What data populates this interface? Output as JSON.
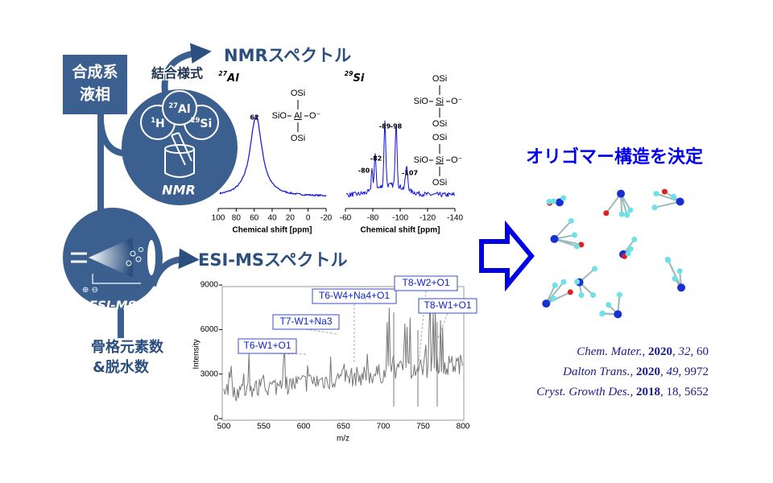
{
  "synthesis": {
    "lines": [
      "合成系",
      "液相"
    ]
  },
  "bonding_label": "結合様式",
  "nmr_title": "NMRスペクトル",
  "nmr_probe": {
    "nuclei": [
      {
        "mass": "1",
        "symbol": "H"
      },
      {
        "mass": "27",
        "symbol": "Al"
      },
      {
        "mass": "29",
        "symbol": "Si"
      }
    ],
    "label": "NMR"
  },
  "esi_probe": {
    "label": "ESI-MS",
    "charges": "⊕ ⊖"
  },
  "esi_output": {
    "lines": [
      "骨格元素数",
      "&脱水数"
    ]
  },
  "ms_title": "ESI-MSスペクトル",
  "al_spectrum": {
    "nucleus": {
      "mass": "27",
      "symbol": "Al"
    },
    "peak_labels": [
      "62"
    ],
    "structure": {
      "top": "OSi",
      "left": "SiO",
      "center": "Al",
      "right": "O⁻",
      "bottom": "OSi"
    },
    "xticks": [
      "100",
      "80",
      "60",
      "40",
      "20",
      "0",
      "-20"
    ],
    "xlabel": "Chemical shift [ppm]"
  },
  "si_spectrum": {
    "nucleus": {
      "mass": "29",
      "symbol": "Si"
    },
    "peak_labels": [
      "-80",
      "-82",
      "-89",
      "-98",
      "-107"
    ],
    "structures": [
      {
        "top": "OSi",
        "left": "SiO",
        "center": "Si",
        "right": "O⁻",
        "bottom": "OSi"
      },
      {
        "top": "OSi",
        "left": "SiO",
        "center": "Si",
        "right": "O⁻",
        "bottom": "OSi"
      }
    ],
    "xticks": [
      "-60",
      "-80",
      "-100",
      "-120",
      "-140"
    ],
    "xlabel": "Chemical shift [ppm]"
  },
  "ms_spectrum": {
    "yticks": [
      "0",
      "3000",
      "6000",
      "9000"
    ],
    "xticks": [
      "500",
      "550",
      "600",
      "650",
      "700",
      "750",
      "800"
    ],
    "ylabel": "Intensity",
    "xlabel": "m/z",
    "annotations": [
      "T6-W1+O1",
      "T7-W1+Na3",
      "T6-W4+Na4+O1",
      "T8-W2+O1",
      "T8-W1+O1"
    ]
  },
  "result_title": "オリゴマー構造を決定",
  "references": [
    [
      {
        "text": "Chem. Mater., ",
        "style": "italic"
      },
      {
        "text": "2020",
        "style": "bold"
      },
      {
        "text": ", ",
        "style": "normal"
      },
      {
        "text": "32",
        "style": "italic"
      },
      {
        "text": ", 60",
        "style": "normal"
      }
    ],
    [
      {
        "text": "Dalton Trans., ",
        "style": "italic"
      },
      {
        "text": "2020",
        "style": "bold"
      },
      {
        "text": ", ",
        "style": "normal"
      },
      {
        "text": "49",
        "style": "italic"
      },
      {
        "text": ", 9972",
        "style": "normal"
      }
    ],
    [
      {
        "text": "Cryst. Growth Des., ",
        "style": "italic"
      },
      {
        "text": "2018",
        "style": "bold"
      },
      {
        "text": ", 18, 5652",
        "style": "normal"
      }
    ]
  ]
}
